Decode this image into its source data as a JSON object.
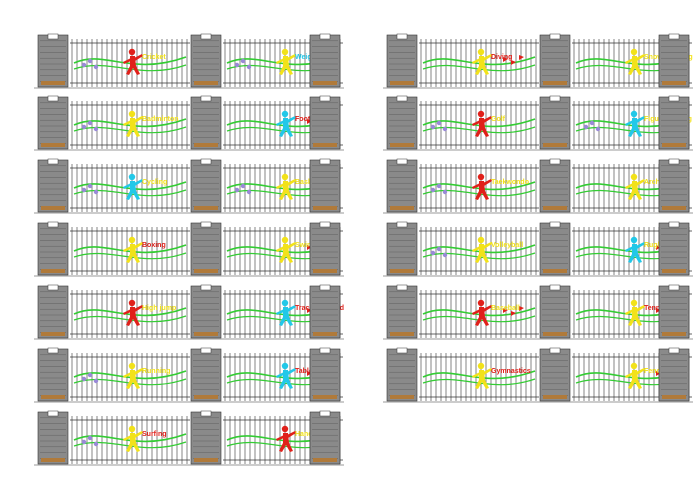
{
  "colors": {
    "pillar": "#8a8a8a",
    "pillar_dark": "#555555",
    "rail": "#333333",
    "ground": "#9a9a9a",
    "wave": "#33cc33",
    "red": "#e0201a",
    "yellow": "#f2e21a",
    "cyan": "#22c8e8",
    "purple": "#9a8ad8"
  },
  "icon_names": [
    "athlete-silhouette-icon",
    "triangle-flag-icon",
    "ball-dot-icon"
  ],
  "panels": [
    {
      "section": "a",
      "label": "Cricket",
      "label_color": "yellow",
      "figure_color": "red",
      "accent": "dots"
    },
    {
      "section": "b",
      "label": "Weightlifting",
      "label_color": "cyan",
      "figure_color": "yellow",
      "accent": "dots"
    },
    {
      "section": "a",
      "label": "Badminton",
      "label_color": "yellow",
      "figure_color": "yellow",
      "accent": "dots"
    },
    {
      "section": "b",
      "label": "Football",
      "label_color": "red",
      "figure_color": "cyan",
      "accent": "flags"
    },
    {
      "section": "a",
      "label": "Cycling",
      "label_color": "yellow",
      "figure_color": "cyan",
      "accent": "dots"
    },
    {
      "section": "b",
      "label": "Basketball",
      "label_color": "yellow",
      "figure_color": "yellow",
      "accent": "dots"
    },
    {
      "section": "a",
      "label": "Boxing",
      "label_color": "red",
      "figure_color": "yellow",
      "accent": "none"
    },
    {
      "section": "b",
      "label": "Swimming",
      "label_color": "yellow",
      "figure_color": "yellow",
      "accent": "flags"
    },
    {
      "section": "a",
      "label": "High jump",
      "label_color": "yellow",
      "figure_color": "red",
      "accent": "none"
    },
    {
      "section": "b",
      "label": "Track and field",
      "label_color": "red",
      "figure_color": "cyan",
      "accent": "flags"
    },
    {
      "section": "a",
      "label": "Running",
      "label_color": "yellow",
      "figure_color": "yellow",
      "accent": "dots"
    },
    {
      "section": "b",
      "label": "Table tennis",
      "label_color": "red",
      "figure_color": "cyan",
      "accent": "flags"
    },
    {
      "section": "a",
      "label": "Surfing",
      "label_color": "red",
      "figure_color": "yellow",
      "accent": "dots"
    },
    {
      "section": "b",
      "label": "Handball",
      "label_color": "yellow",
      "figure_color": "red",
      "accent": "none"
    },
    {
      "section": "c",
      "label": "Diving",
      "label_color": "red",
      "figure_color": "yellow",
      "accent": "flags"
    },
    {
      "section": "d",
      "label": "Snowboarding",
      "label_color": "yellow",
      "figure_color": "yellow",
      "accent": "none"
    },
    {
      "section": "c",
      "label": "Golf",
      "label_color": "yellow",
      "figure_color": "red",
      "accent": "dots"
    },
    {
      "section": "d",
      "label": "Figure skating",
      "label_color": "yellow",
      "figure_color": "cyan",
      "accent": "dots"
    },
    {
      "section": "c",
      "label": "Taekwondo",
      "label_color": "yellow",
      "figure_color": "red",
      "accent": "dots"
    },
    {
      "section": "d",
      "label": "Archery",
      "label_color": "yellow",
      "figure_color": "yellow",
      "accent": "none"
    },
    {
      "section": "c",
      "label": "Volleyball",
      "label_color": "yellow",
      "figure_color": "yellow",
      "accent": "dots"
    },
    {
      "section": "d",
      "label": "Rugby",
      "label_color": "yellow",
      "figure_color": "cyan",
      "accent": "flags"
    },
    {
      "section": "c",
      "label": "Baseball",
      "label_color": "yellow",
      "figure_color": "red",
      "accent": "flags"
    },
    {
      "section": "d",
      "label": "Tennis",
      "label_color": "red",
      "figure_color": "yellow",
      "accent": "flags"
    },
    {
      "section": "c",
      "label": "Gymnastics",
      "label_color": "red",
      "figure_color": "yellow",
      "accent": "none"
    },
    {
      "section": "d",
      "label": "Fencing",
      "label_color": "yellow",
      "figure_color": "yellow",
      "accent": "flags"
    }
  ]
}
